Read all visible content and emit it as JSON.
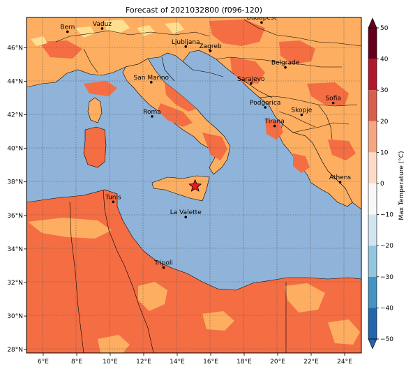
{
  "title": "Forecast of 2021032800 (f096-120)",
  "map": {
    "x_ticks": [
      "6°E",
      "8°E",
      "10°E",
      "12°E",
      "14°E",
      "16°E",
      "18°E",
      "20°E",
      "22°E",
      "24°E"
    ],
    "y_ticks": [
      "46°N",
      "44°N",
      "42°N",
      "40°N",
      "38°N",
      "36°N",
      "34°N",
      "32°N",
      "30°N",
      "28°N"
    ],
    "lon_range": [
      5,
      25
    ],
    "lat_range": [
      27.8,
      47.8
    ],
    "colors": {
      "sea": "#8fb3d9",
      "warm_20_30": "#f46d43",
      "warm_10_20": "#fdae61",
      "warm_0_10": "#fee090",
      "land_cold": "#ffffbf",
      "grid": "#555555",
      "marker": "#e41a1c"
    },
    "cities": [
      {
        "name": "Budapest",
        "lon": 19.04,
        "lat": 47.5
      },
      {
        "name": "Vaduz",
        "lon": 9.52,
        "lat": 47.14
      },
      {
        "name": "Bern",
        "lon": 7.45,
        "lat": 46.95
      },
      {
        "name": "Ljubljana",
        "lon": 14.51,
        "lat": 46.06
      },
      {
        "name": "Zagreb",
        "lon": 15.98,
        "lat": 45.81
      },
      {
        "name": "Belgrade",
        "lon": 20.46,
        "lat": 44.82
      },
      {
        "name": "San Marino",
        "lon": 12.45,
        "lat": 43.94
      },
      {
        "name": "Sarajevo",
        "lon": 18.41,
        "lat": 43.86
      },
      {
        "name": "Sofia",
        "lon": 23.32,
        "lat": 42.7
      },
      {
        "name": "Podgorica",
        "lon": 19.26,
        "lat": 42.44
      },
      {
        "name": "Skopje",
        "lon": 21.43,
        "lat": 42.0
      },
      {
        "name": "Roma",
        "lon": 12.5,
        "lat": 41.9
      },
      {
        "name": "Tirana",
        "lon": 19.82,
        "lat": 41.33
      },
      {
        "name": "Athens",
        "lon": 23.73,
        "lat": 37.98
      },
      {
        "name": "Tunis",
        "lon": 10.18,
        "lat": 36.81
      },
      {
        "name": "La Valette",
        "lon": 14.51,
        "lat": 35.9
      },
      {
        "name": "Tripoli",
        "lon": 13.19,
        "lat": 32.89
      }
    ],
    "star": {
      "lon": 15.07,
      "lat": 37.75
    }
  },
  "colorbar": {
    "label": "Max Temperature (°C)",
    "ticks": [
      "50",
      "40",
      "30",
      "20",
      "10",
      "0",
      "−10",
      "−20",
      "−30",
      "−40",
      "−50"
    ],
    "range": [
      -50,
      50
    ],
    "bins": [
      {
        "from": 40,
        "to": 50,
        "color": "#67001f"
      },
      {
        "from": 30,
        "to": 40,
        "color": "#b2182b"
      },
      {
        "from": 20,
        "to": 30,
        "color": "#d6604d"
      },
      {
        "from": 10,
        "to": 20,
        "color": "#f4a582"
      },
      {
        "from": 0,
        "to": 10,
        "color": "#fddbc7"
      },
      {
        "from": -10,
        "to": 0,
        "color": "#f7f7f7"
      },
      {
        "from": -20,
        "to": -10,
        "color": "#d1e5f0"
      },
      {
        "from": -30,
        "to": -20,
        "color": "#92c5de"
      },
      {
        "from": -40,
        "to": -30,
        "color": "#4393c3"
      },
      {
        "from": -50,
        "to": -40,
        "color": "#2166ac"
      }
    ]
  }
}
